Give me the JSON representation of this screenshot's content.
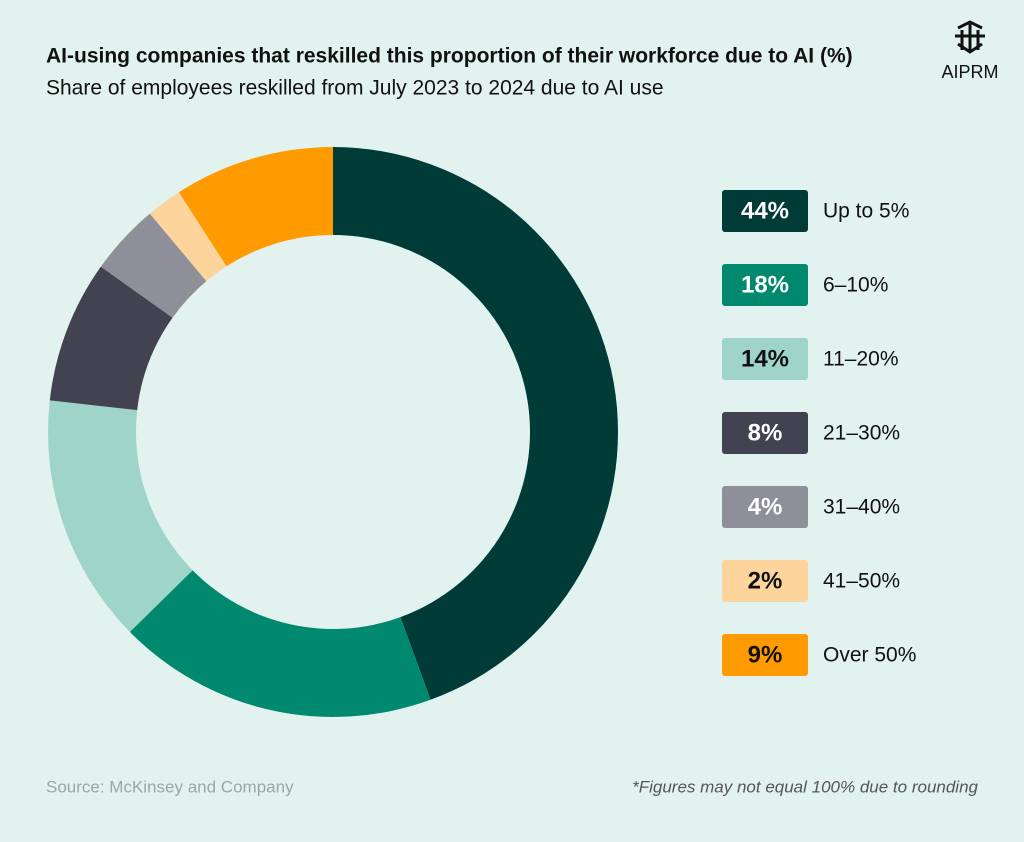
{
  "brand": "AIPRM",
  "chart_data": {
    "type": "donut",
    "title": "AI-using companies that reskilled this proportion of their workforce due to AI (%)",
    "subtitle": "Share of employees reskilled from July 2023 to 2024 due to AI use",
    "categories": [
      "Up to 5%",
      "6–10%",
      "11–20%",
      "21–30%",
      "31–40%",
      "41–50%",
      "Over 50%"
    ],
    "values": [
      44,
      18,
      14,
      8,
      4,
      2,
      9
    ],
    "value_labels": [
      "44%",
      "18%",
      "14%",
      "8%",
      "4%",
      "2%",
      "9%"
    ],
    "colors": [
      "#003b38",
      "#00896f",
      "#9fd5c9",
      "#434250",
      "#8e8f98",
      "#fdd49b",
      "#ff9a00"
    ],
    "source": "Source: McKinsey and Company",
    "note": "*Figures may not equal 100% due to rounding"
  }
}
